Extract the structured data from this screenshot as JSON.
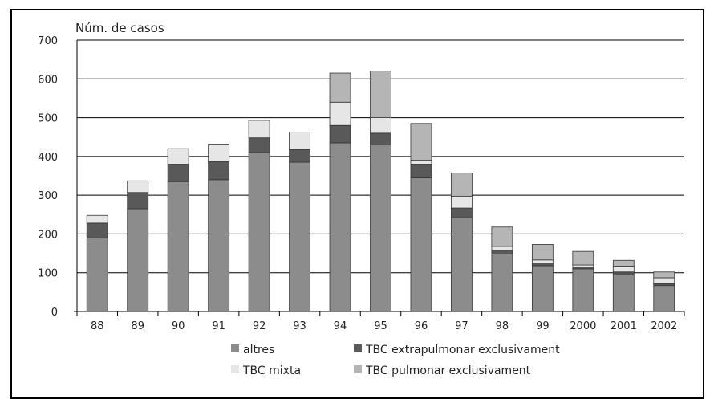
{
  "chart_data": {
    "type": "bar",
    "stacked": true,
    "title": "",
    "ylabel": "Núm. de casos",
    "xlabel": "",
    "ylim": [
      0,
      700
    ],
    "yticks": [
      0,
      100,
      200,
      300,
      400,
      500,
      600,
      700
    ],
    "grid": true,
    "legend_position": "bottom",
    "categories": [
      "88",
      "89",
      "90",
      "91",
      "92",
      "93",
      "94",
      "95",
      "96",
      "97",
      "98",
      "99",
      "2000",
      "2001",
      "2002"
    ],
    "series": [
      {
        "name": "altres",
        "color": "#8c8c8c",
        "values": [
          190,
          265,
          335,
          340,
          410,
          385,
          435,
          430,
          345,
          242,
          148,
          118,
          110,
          97,
          67
        ]
      },
      {
        "name": "TBC extrapulmonar exclusivament",
        "color": "#595959",
        "values": [
          38,
          42,
          45,
          47,
          38,
          33,
          45,
          30,
          35,
          25,
          10,
          5,
          5,
          5,
          5
        ]
      },
      {
        "name": "TBC mixta",
        "color": "#e6e6e6",
        "values": [
          20,
          30,
          40,
          45,
          45,
          45,
          60,
          40,
          10,
          30,
          10,
          10,
          5,
          15,
          15
        ]
      },
      {
        "name": "TBC pulmonar exclusivament",
        "color": "#b5b5b5",
        "values": [
          0,
          0,
          0,
          0,
          0,
          0,
          75,
          120,
          95,
          60,
          50,
          40,
          35,
          15,
          15
        ]
      }
    ],
    "legend_order": [
      "altres",
      "TBC extrapulmonar exclusivament",
      "TBC mixta",
      "TBC pulmonar exclusivament"
    ]
  }
}
